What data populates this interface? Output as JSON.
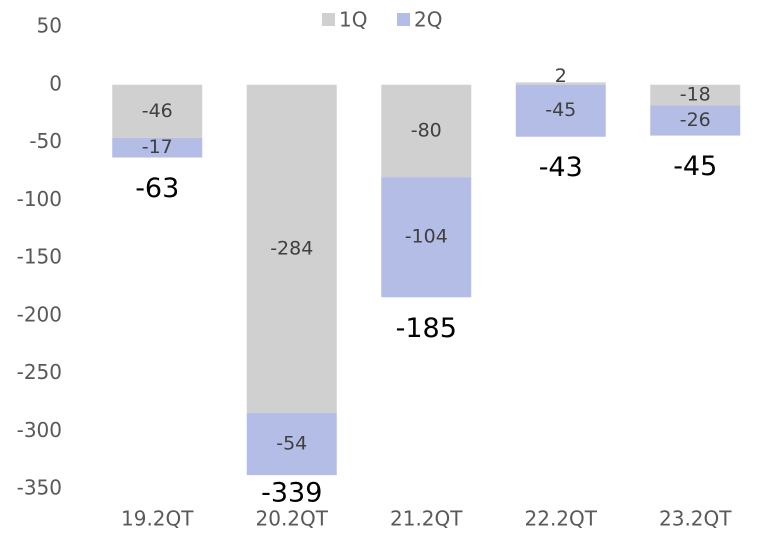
{
  "chart_data": {
    "type": "stacked_bar",
    "categories": [
      "19.2QT",
      "20.2QT",
      "21.2QT",
      "22.2QT",
      "23.2QT"
    ],
    "series": [
      {
        "name": "1Q",
        "color": "#d0d0d0",
        "values": [
          -46,
          -284,
          -80,
          2,
          -18
        ]
      },
      {
        "name": "2Q",
        "color": "#b4bde6",
        "values": [
          -17,
          -54,
          -104,
          -45,
          -26
        ]
      }
    ],
    "totals": [
      -63,
      -339,
      -185,
      -43,
      -45
    ],
    "ylim": [
      -350,
      50
    ],
    "yticks": [
      -350,
      -300,
      -250,
      -200,
      -150,
      -100,
      -50,
      0,
      50
    ],
    "grid": false,
    "legend": "top"
  }
}
